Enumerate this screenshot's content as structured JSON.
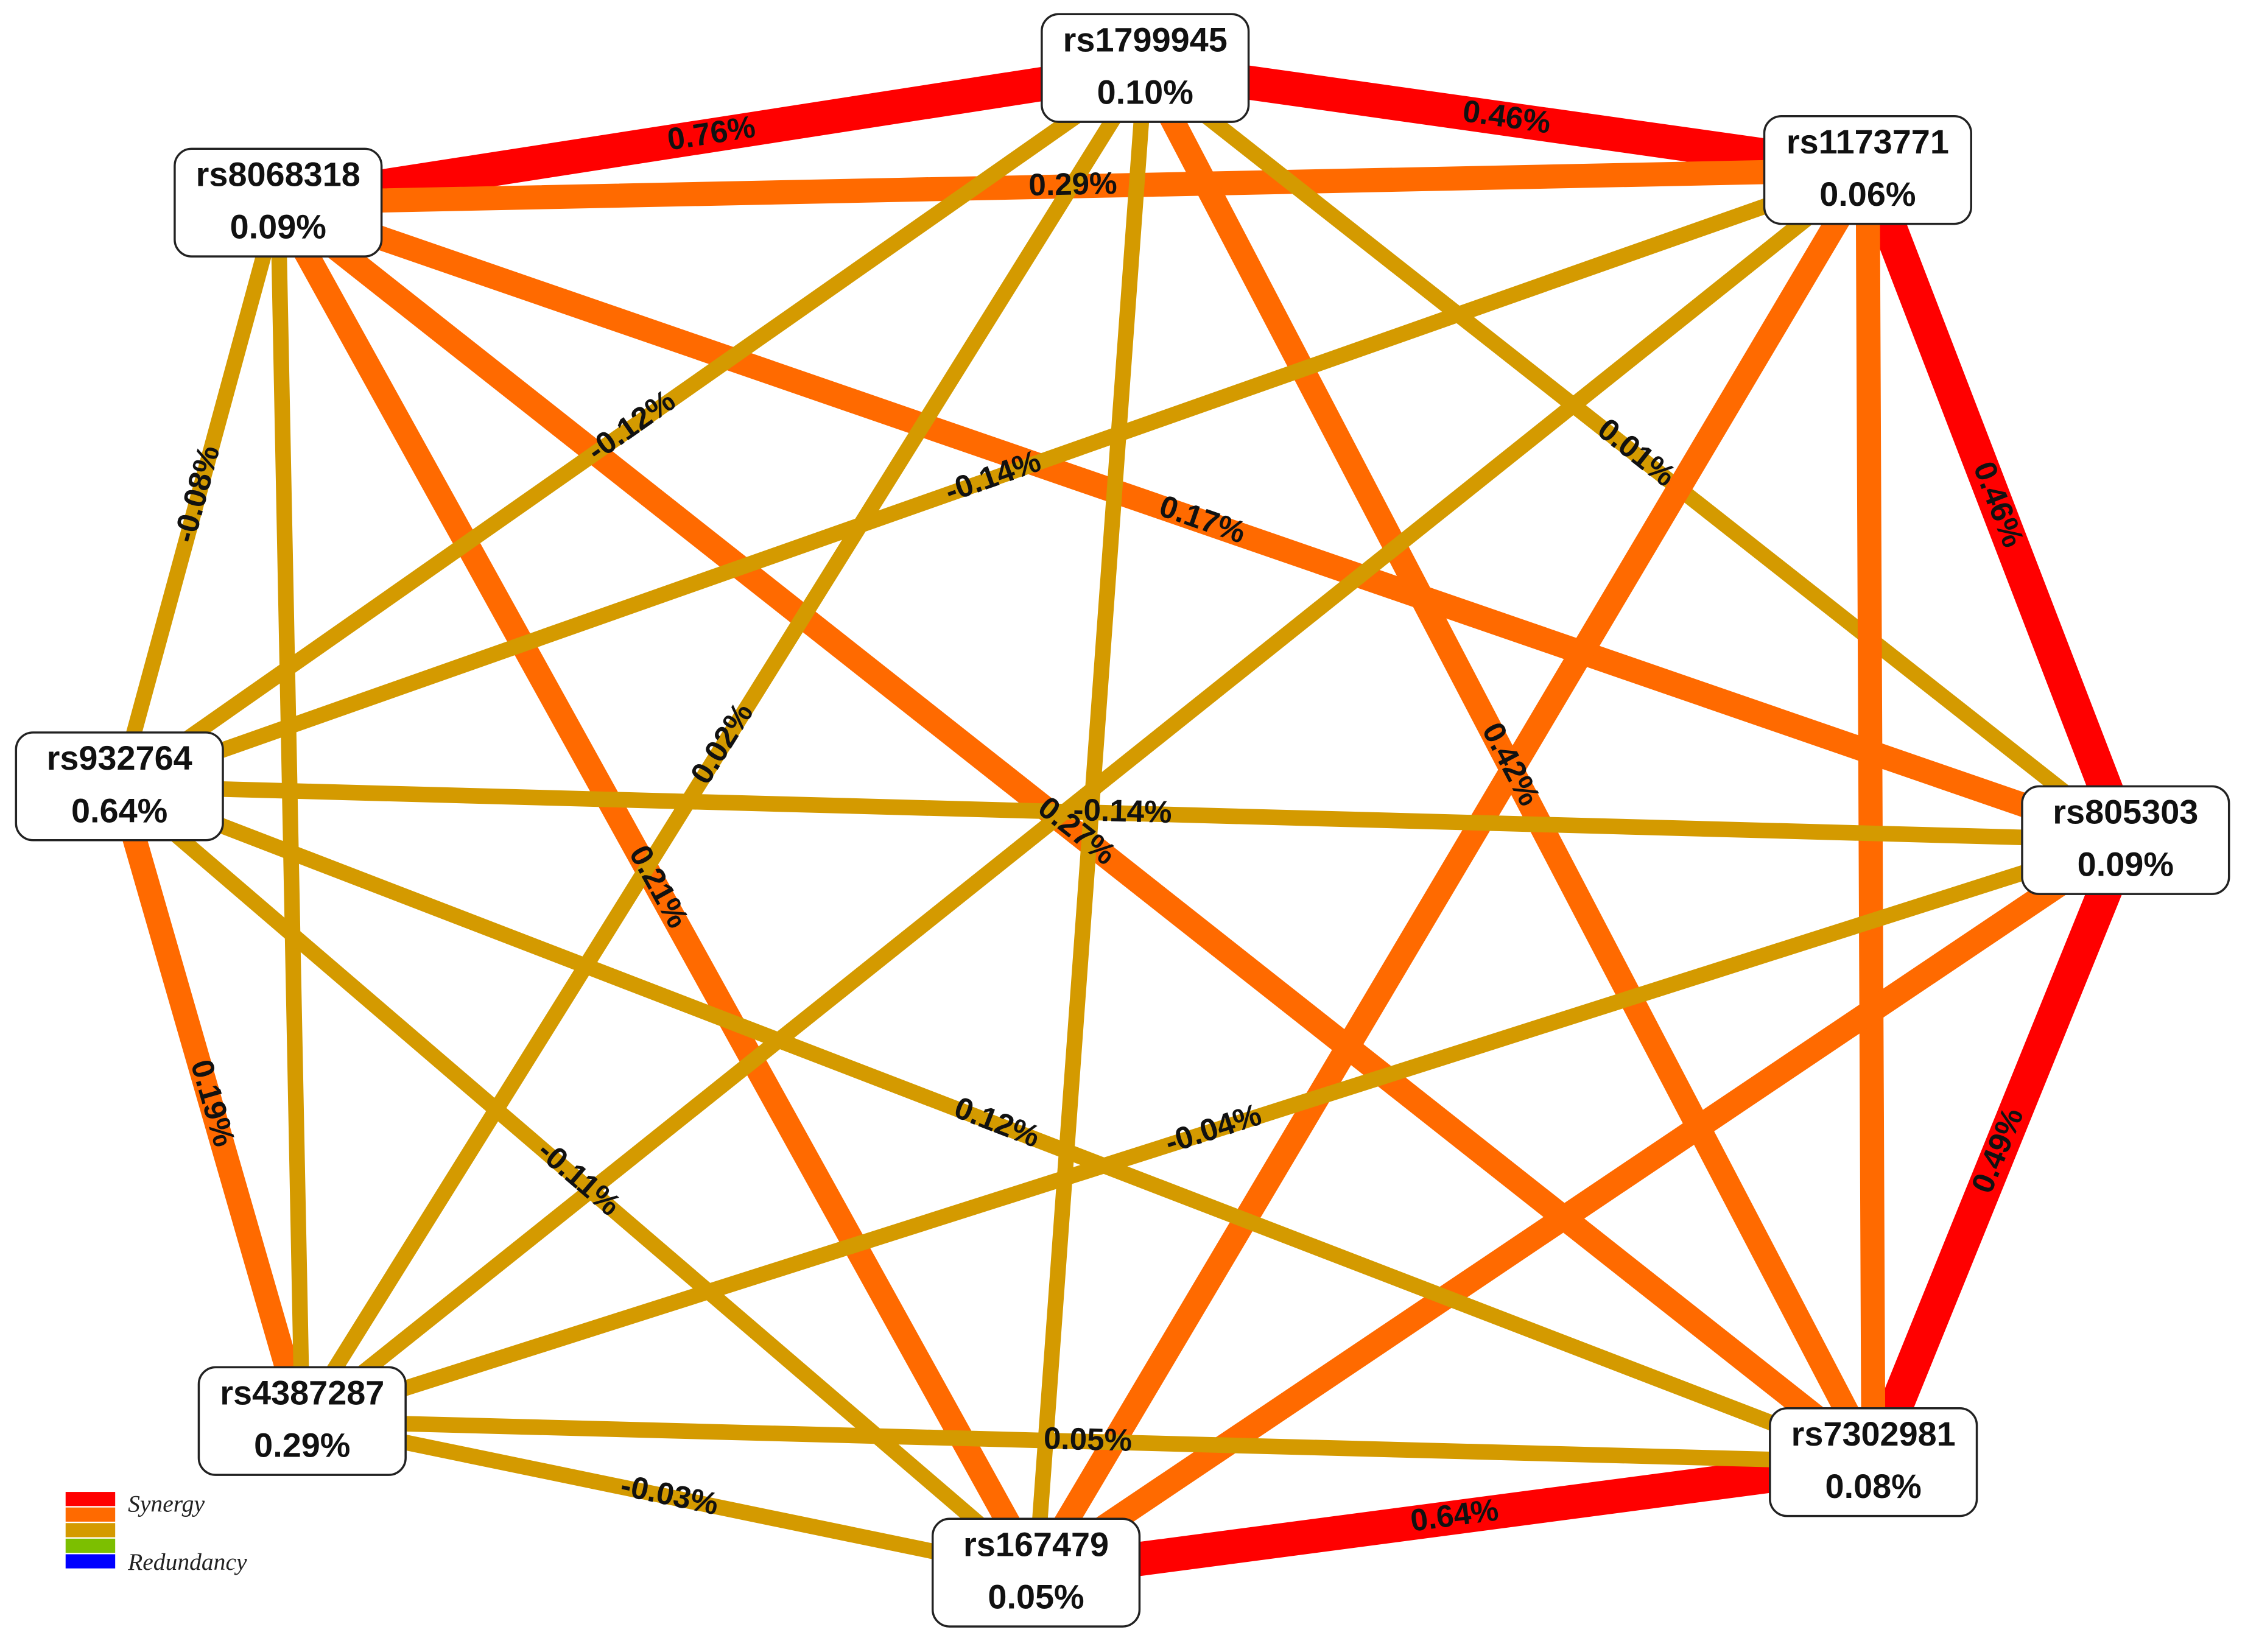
{
  "nodes": [
    {
      "label": "rs1799945",
      "value": "0.10%"
    },
    {
      "label": "rs1173771",
      "value": "0.06%"
    },
    {
      "label": "rs805303",
      "value": "0.09%"
    },
    {
      "label": "rs7302981",
      "value": "0.08%"
    },
    {
      "label": "rs167479",
      "value": "0.05%"
    },
    {
      "label": "rs4387287",
      "value": "0.29%"
    },
    {
      "label": "rs932764",
      "value": "0.64%"
    },
    {
      "label": "rs8068318",
      "value": "0.09%"
    }
  ],
  "edges": [
    {
      "from": 7,
      "to": 0,
      "label": "0.76%",
      "color": "#ff0000"
    },
    {
      "from": 0,
      "to": 1,
      "label": "0.46%",
      "color": "#ff0000"
    },
    {
      "from": 1,
      "to": 2,
      "label": "0.46%",
      "color": "#ff0000"
    },
    {
      "from": 2,
      "to": 3,
      "label": "0.49%",
      "color": "#ff0000"
    },
    {
      "from": 3,
      "to": 4,
      "label": "0.64%",
      "color": "#ff0000"
    },
    {
      "from": 4,
      "to": 5,
      "label": "-0.03%",
      "color": "#d49a00"
    },
    {
      "from": 5,
      "to": 6,
      "label": "0.19%",
      "color": "#ff6a00"
    },
    {
      "from": 6,
      "to": 7,
      "label": "-0.08%",
      "color": "#d49a00"
    },
    {
      "from": 7,
      "to": 1,
      "label": "0.29%",
      "color": "#ff6a00"
    },
    {
      "from": 7,
      "to": 2,
      "label": "0.17%",
      "color": "#ff6a00"
    },
    {
      "from": 7,
      "to": 3,
      "label": "0.27%",
      "color": "#ff6a00"
    },
    {
      "from": 7,
      "to": 4,
      "label": "0.21%",
      "color": "#ff6a00"
    },
    {
      "from": 7,
      "to": 5,
      "label": null,
      "color": "#d49a00"
    },
    {
      "from": 0,
      "to": 6,
      "label": "-0.12%",
      "color": "#d49a00"
    },
    {
      "from": 0,
      "to": 5,
      "label": "0.02%",
      "color": "#d49a00"
    },
    {
      "from": 0,
      "to": 4,
      "label": null,
      "color": "#d49a00"
    },
    {
      "from": 0,
      "to": 3,
      "label": "0.42%",
      "color": "#ff6a00"
    },
    {
      "from": 0,
      "to": 2,
      "label": "0.01%",
      "color": "#d49a00"
    },
    {
      "from": 1,
      "to": 6,
      "label": "-0.14%",
      "color": "#d49a00"
    },
    {
      "from": 1,
      "to": 5,
      "label": null,
      "color": "#d49a00"
    },
    {
      "from": 1,
      "to": 4,
      "label": null,
      "color": "#ff6a00"
    },
    {
      "from": 1,
      "to": 3,
      "label": null,
      "color": "#ff6a00"
    },
    {
      "from": 2,
      "to": 6,
      "label": "-0.14%",
      "color": "#d49a00"
    },
    {
      "from": 2,
      "to": 5,
      "label": "-0.04%",
      "color": "#d49a00"
    },
    {
      "from": 2,
      "to": 4,
      "label": null,
      "color": "#ff6a00"
    },
    {
      "from": 6,
      "to": 3,
      "label": "0.12%",
      "color": "#d49a00"
    },
    {
      "from": 6,
      "to": 4,
      "label": "-0.11%",
      "color": "#d49a00"
    },
    {
      "from": 5,
      "to": 3,
      "label": "0.05%",
      "color": "#d49a00"
    }
  ],
  "legend": {
    "colors": [
      "#ff0000",
      "#ff6a00",
      "#d49a00",
      "#7cbf00",
      "#0000ff"
    ],
    "top": "Synergy",
    "bottom": "Redundancy"
  }
}
